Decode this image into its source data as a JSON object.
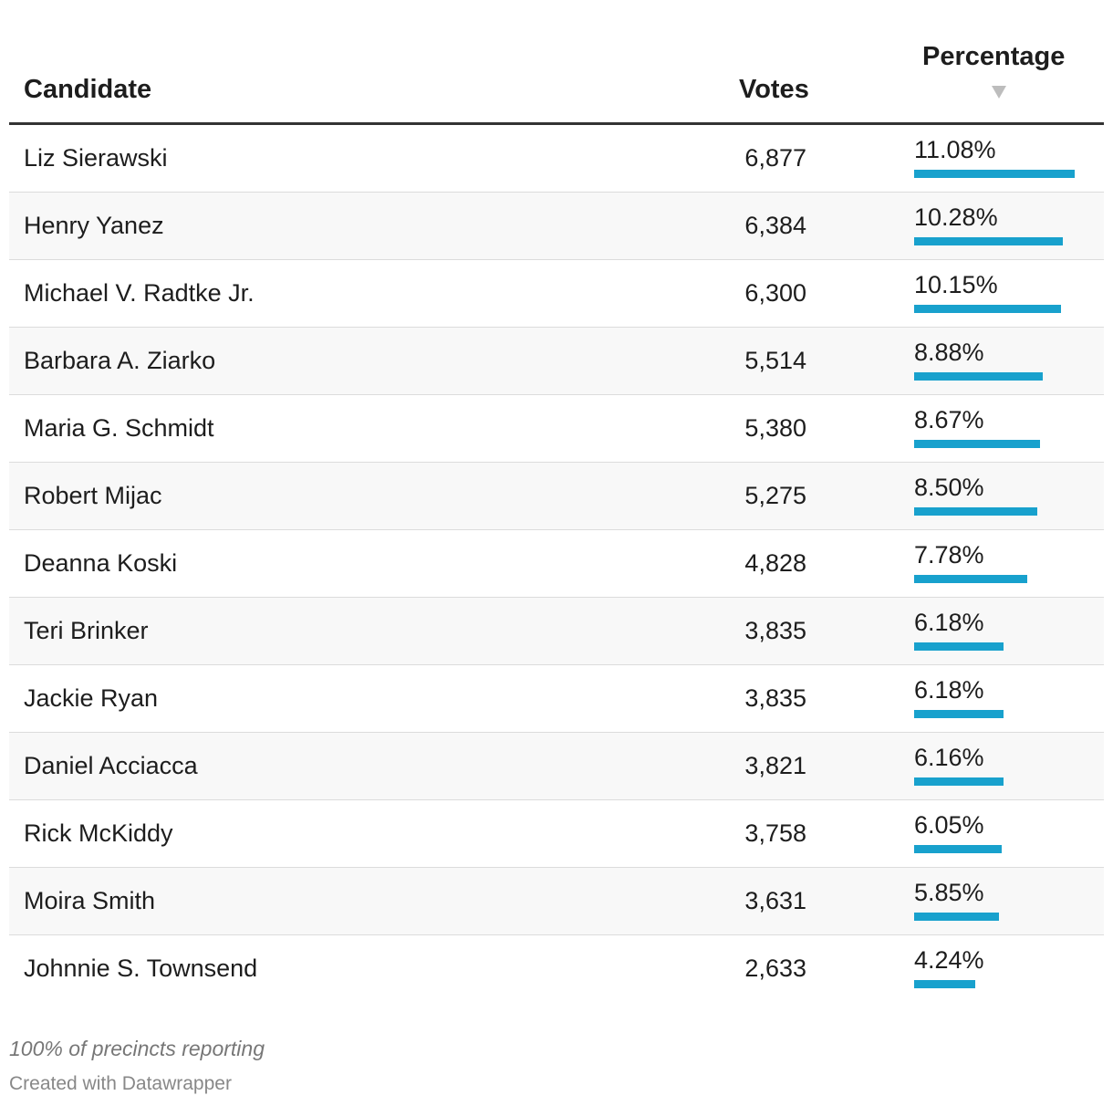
{
  "columns": {
    "candidate": "Candidate",
    "votes": "Votes",
    "percentage": "Percentage"
  },
  "sort_indicator_icon": "sort-descending-icon",
  "bar_color": "#18a1cd",
  "chart_data": {
    "type": "table",
    "columns": [
      "Candidate",
      "Votes",
      "Percentage"
    ],
    "sort": {
      "column": "Percentage",
      "order": "descending"
    },
    "bar_scale_max_percent": 11.08,
    "rows": [
      {
        "candidate": "Liz Sierawski",
        "votes": "6,877",
        "percentage": "11.08%",
        "value": 11.08
      },
      {
        "candidate": "Henry Yanez",
        "votes": "6,384",
        "percentage": "10.28%",
        "value": 10.28
      },
      {
        "candidate": "Michael V. Radtke Jr.",
        "votes": "6,300",
        "percentage": "10.15%",
        "value": 10.15
      },
      {
        "candidate": "Barbara A. Ziarko",
        "votes": "5,514",
        "percentage": "8.88%",
        "value": 8.88
      },
      {
        "candidate": "Maria G. Schmidt",
        "votes": "5,380",
        "percentage": "8.67%",
        "value": 8.67
      },
      {
        "candidate": "Robert Mijac",
        "votes": "5,275",
        "percentage": "8.50%",
        "value": 8.5
      },
      {
        "candidate": "Deanna Koski",
        "votes": "4,828",
        "percentage": "7.78%",
        "value": 7.78
      },
      {
        "candidate": "Teri Brinker",
        "votes": "3,835",
        "percentage": "6.18%",
        "value": 6.18
      },
      {
        "candidate": "Jackie Ryan",
        "votes": "3,835",
        "percentage": "6.18%",
        "value": 6.18
      },
      {
        "candidate": "Daniel Acciacca",
        "votes": "3,821",
        "percentage": "6.16%",
        "value": 6.16
      },
      {
        "candidate": "Rick McKiddy",
        "votes": "3,758",
        "percentage": "6.05%",
        "value": 6.05
      },
      {
        "candidate": "Moira Smith",
        "votes": "3,631",
        "percentage": "5.85%",
        "value": 5.85
      },
      {
        "candidate": "Johnnie S. Townsend",
        "votes": "2,633",
        "percentage": "4.24%",
        "value": 4.24
      }
    ]
  },
  "footer": {
    "notes": "100% of precincts reporting",
    "credit": "Created with Datawrapper"
  }
}
